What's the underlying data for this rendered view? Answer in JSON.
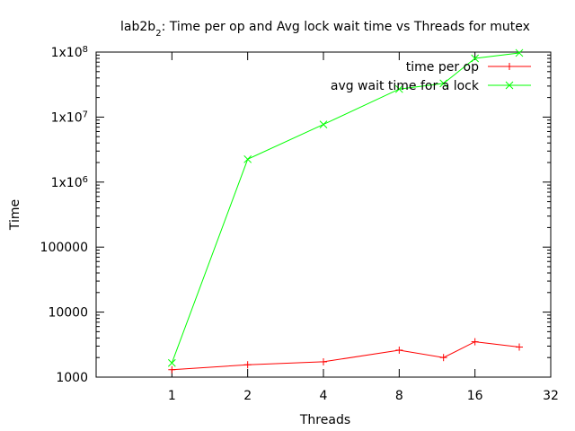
{
  "chart_data": {
    "type": "line",
    "title": "lab2b",
    "title_sub": "2",
    "title_rest": ": Time per op and Avg lock wait time vs Threads for mutex",
    "xlabel": "Threads",
    "ylabel": "Time",
    "x_scale": "log2",
    "y_scale": "log10",
    "xlim": [
      0.5,
      32
    ],
    "ylim": [
      1000,
      100000000
    ],
    "x_ticks": [
      {
        "value": 1,
        "label": "1"
      },
      {
        "value": 2,
        "label": "2"
      },
      {
        "value": 4,
        "label": "4"
      },
      {
        "value": 8,
        "label": "8"
      },
      {
        "value": 16,
        "label": "16"
      },
      {
        "value": 32,
        "label": "32"
      }
    ],
    "y_ticks": [
      {
        "value": 1000,
        "label": "1000",
        "sup": ""
      },
      {
        "value": 10000,
        "label": "10000",
        "sup": ""
      },
      {
        "value": 100000,
        "label": "100000",
        "sup": ""
      },
      {
        "value": 1000000,
        "label": "1x10",
        "sup": "6"
      },
      {
        "value": 10000000,
        "label": "1x10",
        "sup": "7"
      },
      {
        "value": 100000000,
        "label": "1x10",
        "sup": "8"
      }
    ],
    "legend_position": "top-right",
    "grid": false,
    "series": [
      {
        "name": "time per op",
        "color": "#ff0000",
        "marker": "plus",
        "x": [
          1,
          2,
          4,
          8,
          12,
          16,
          24
        ],
        "y": [
          1300,
          1550,
          1720,
          2600,
          2000,
          3500,
          2900
        ]
      },
      {
        "name": "avg wait time for a lock",
        "color": "#00ff00",
        "marker": "cross",
        "x": [
          1,
          2,
          4,
          8,
          12,
          16,
          24
        ],
        "y": [
          1650,
          2250000,
          7700000,
          27000000,
          33000000,
          80000000,
          97000000
        ]
      }
    ]
  }
}
